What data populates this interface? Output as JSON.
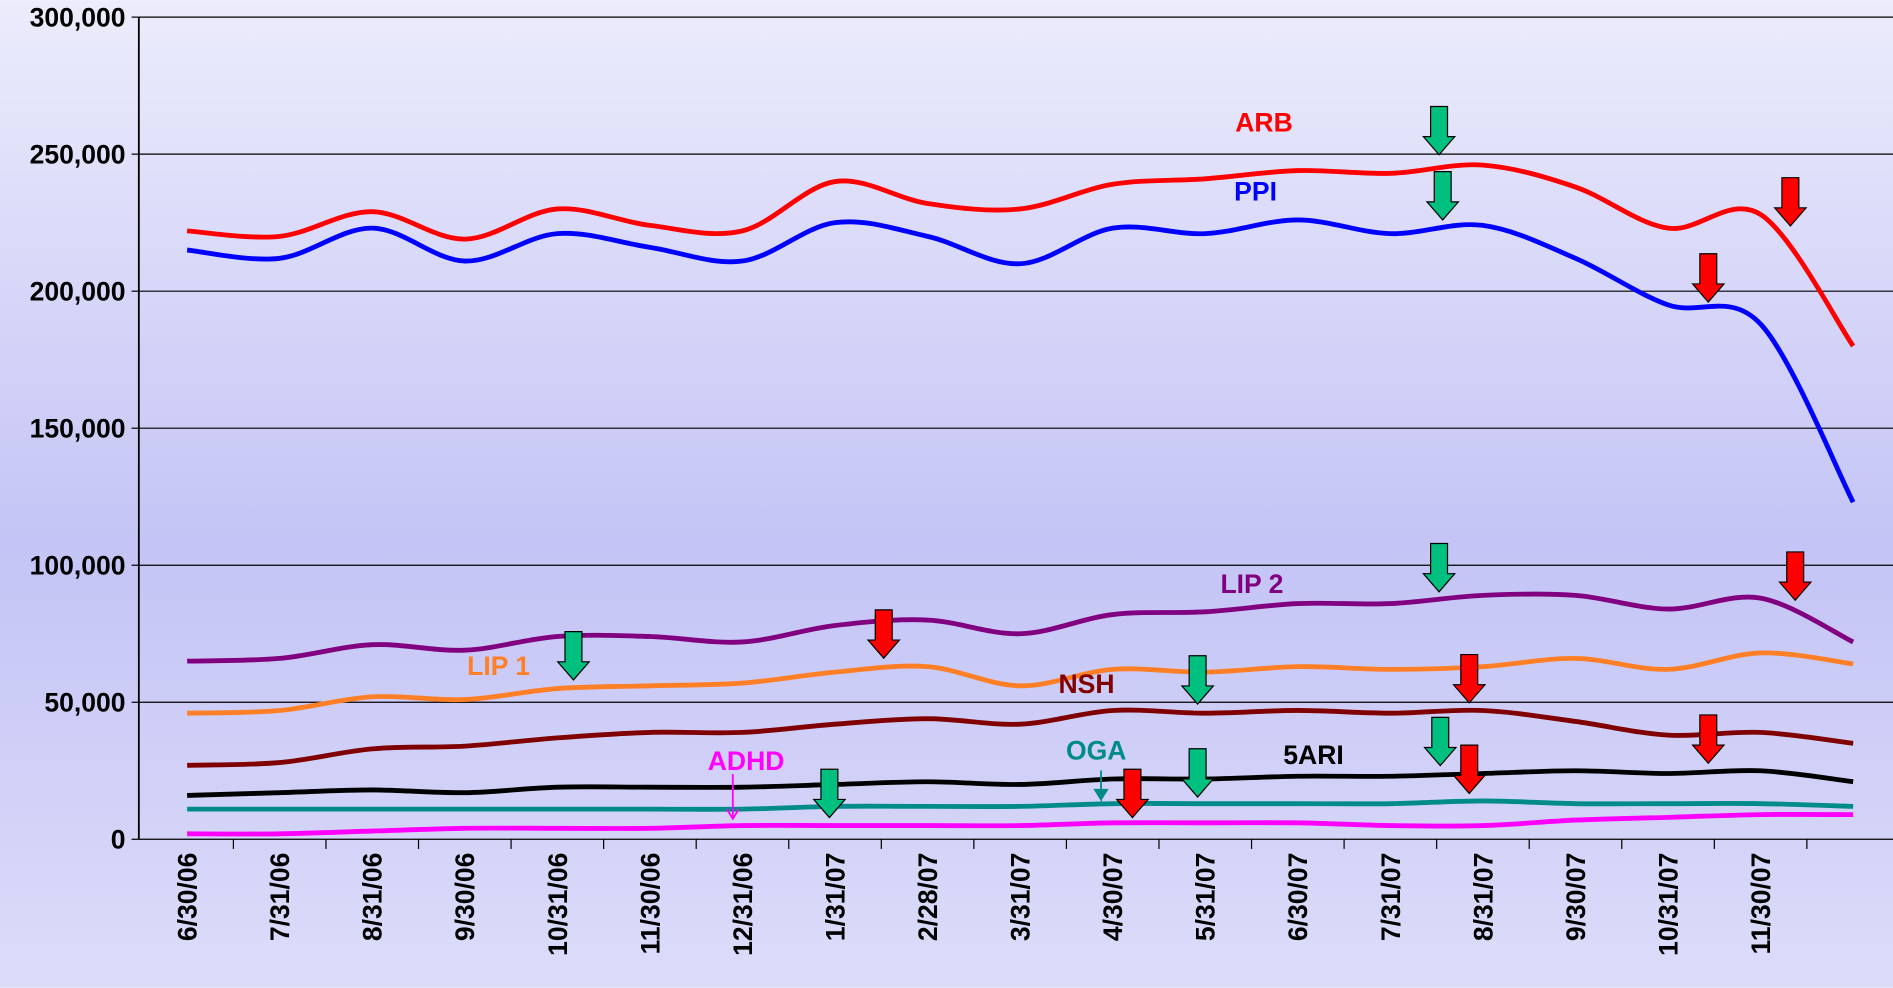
{
  "chart_data": {
    "type": "line",
    "categories": [
      "6/30/06",
      "7/31/06",
      "8/31/06",
      "9/30/06",
      "10/31/06",
      "11/30/06",
      "12/31/06",
      "1/31/07",
      "2/28/07",
      "3/31/07",
      "4/30/07",
      "5/31/07",
      "6/30/07",
      "7/31/07",
      "8/31/07",
      "9/30/07",
      "10/31/07",
      "11/30/07",
      null
    ],
    "series": [
      {
        "name": "ARB",
        "color": "#ff0000",
        "values": [
          222000,
          220000,
          229000,
          219000,
          230000,
          224000,
          222000,
          240000,
          232000,
          230000,
          239000,
          241000,
          244000,
          243000,
          246000,
          238000,
          223000,
          228000,
          180000
        ]
      },
      {
        "name": "PPI",
        "color": "#0000ff",
        "values": [
          215000,
          212000,
          223000,
          211000,
          221000,
          216000,
          211000,
          225000,
          220000,
          210000,
          223000,
          221000,
          226000,
          221000,
          224000,
          212000,
          195000,
          188000,
          123000
        ]
      },
      {
        "name": "LIP 2",
        "color": "#800080",
        "values": [
          65000,
          66000,
          71000,
          69000,
          74000,
          74000,
          72000,
          78000,
          80000,
          75000,
          82000,
          83000,
          86000,
          86000,
          89000,
          89000,
          84000,
          88000,
          72000
        ]
      },
      {
        "name": "LIP 1",
        "color": "#ff7f27",
        "values": [
          46000,
          47000,
          52000,
          51000,
          55000,
          56000,
          57000,
          61000,
          63000,
          56000,
          62000,
          61000,
          63000,
          62000,
          63000,
          66000,
          62000,
          68000,
          64000
        ]
      },
      {
        "name": "NSH",
        "color": "#800000",
        "values": [
          27000,
          28000,
          33000,
          34000,
          37000,
          39000,
          39000,
          42000,
          44000,
          42000,
          47000,
          46000,
          47000,
          46000,
          47000,
          43000,
          38000,
          39000,
          35000
        ]
      },
      {
        "name": "5ARI",
        "color": "#000000",
        "values": [
          16000,
          17000,
          18000,
          17000,
          19000,
          19000,
          19000,
          20000,
          21000,
          20000,
          22000,
          22000,
          23000,
          23000,
          24000,
          25000,
          24000,
          25000,
          21000
        ]
      },
      {
        "name": "OGA",
        "color": "#008b8b",
        "values": [
          11000,
          11000,
          11000,
          11000,
          11000,
          11000,
          11000,
          12000,
          12000,
          12000,
          13000,
          13000,
          13000,
          13000,
          14000,
          13000,
          13000,
          13000,
          12000
        ]
      },
      {
        "name": "ADHD",
        "color": "#ff00ff",
        "values": [
          2000,
          2000,
          3000,
          4000,
          4000,
          4000,
          5000,
          5000,
          5000,
          5000,
          6000,
          6000,
          6000,
          5000,
          5000,
          7000,
          8000,
          9000,
          9000
        ]
      }
    ],
    "ylim": [
      0,
      300000
    ],
    "yticks": [
      0,
      {
        "value": 50000,
        "label": "50,000"
      },
      {
        "value": 100000,
        "label": "100,000"
      },
      {
        "value": 150000,
        "label": "150,000"
      },
      {
        "value": 200000,
        "label": "200,000"
      },
      {
        "value": 250000,
        "label": "250,000"
      },
      {
        "value": 300000,
        "label": "300,000"
      }
    ],
    "grid": true
  }
}
